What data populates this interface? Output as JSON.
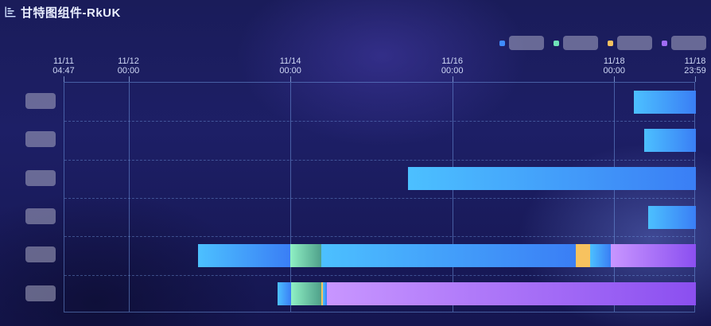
{
  "header": {
    "title": "甘特图组件-RkUK",
    "icon": "bar-chart-icon"
  },
  "legend": {
    "items": [
      {
        "label": "",
        "color": "#3f8cff",
        "icon": "blue-swatch"
      },
      {
        "label": "",
        "color": "#6fe3b8",
        "icon": "green-swatch"
      },
      {
        "label": "",
        "color": "#f7c25f",
        "icon": "orange-swatch"
      },
      {
        "label": "",
        "color": "#a16cf5",
        "icon": "purple-swatch"
      }
    ]
  },
  "colors": {
    "blue_start": "#4cc0ff",
    "blue_end": "#3a7ef5",
    "green_start": "#8ff0c4",
    "green_end": "#4fa08a",
    "orange": "#f7c25f",
    "purple_start": "#c896ff",
    "purple_end": "#8b4ff0"
  },
  "chart_data": {
    "type": "gantt",
    "x_range": [
      "11/11 04:47",
      "11/18 23:59"
    ],
    "ticks": [
      {
        "date": "11/11",
        "time": "04:47"
      },
      {
        "date": "11/12",
        "time": "00:00"
      },
      {
        "date": "11/14",
        "time": "00:00"
      },
      {
        "date": "11/16",
        "time": "00:00"
      },
      {
        "date": "11/18",
        "time": "00:00"
      },
      {
        "date": "11/18",
        "time": "23:59"
      }
    ],
    "rows": [
      {
        "label": "",
        "segments": [
          {
            "start": "11/18 05:40",
            "end": "11/18 23:59",
            "status": "blue"
          }
        ]
      },
      {
        "label": "",
        "segments": [
          {
            "start": "11/18 08:40",
            "end": "11/18 23:59",
            "status": "blue"
          }
        ]
      },
      {
        "label": "",
        "segments": [
          {
            "start": "11/15 10:40",
            "end": "11/18 23:59",
            "status": "blue"
          }
        ]
      },
      {
        "label": "",
        "segments": [
          {
            "start": "11/18 09:50",
            "end": "11/18 23:59",
            "status": "blue"
          }
        ]
      },
      {
        "label": "",
        "segments": [
          {
            "start": "11/12 20:30",
            "end": "11/13 23:45",
            "status": "blue"
          },
          {
            "start": "11/13 23:45",
            "end": "11/14 09:00",
            "status": "green"
          },
          {
            "start": "11/14 09:00",
            "end": "11/17 12:30",
            "status": "blue"
          },
          {
            "start": "11/17 12:30",
            "end": "11/17 16:40",
            "status": "orange"
          },
          {
            "start": "11/17 16:40",
            "end": "11/17 22:40",
            "status": "blue"
          },
          {
            "start": "11/17 22:40",
            "end": "11/18 23:59",
            "status": "purple"
          }
        ]
      },
      {
        "label": "",
        "segments": [
          {
            "start": "11/13 20:00",
            "end": "11/14 00:00",
            "status": "blue"
          },
          {
            "start": "11/14 00:00",
            "end": "11/14 08:50",
            "status": "green"
          },
          {
            "start": "11/14 08:50",
            "end": "11/14 09:20",
            "status": "orange"
          },
          {
            "start": "11/14 09:20",
            "end": "11/14 10:30",
            "status": "blue"
          },
          {
            "start": "11/14 10:30",
            "end": "11/18 23:59",
            "status": "purple"
          }
        ]
      }
    ]
  }
}
